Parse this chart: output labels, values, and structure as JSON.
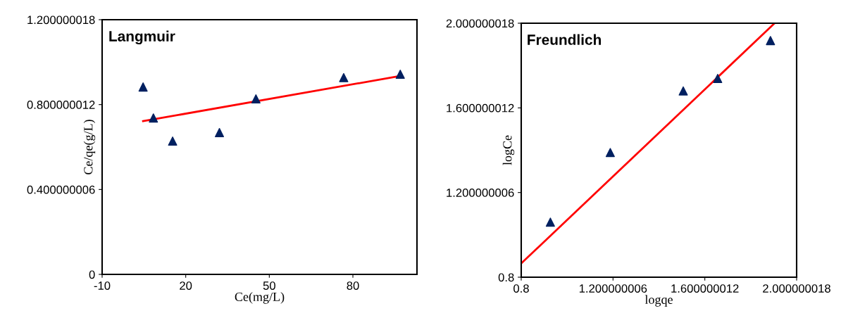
{
  "chart_data": [
    {
      "type": "scatter",
      "title": "Langmuir",
      "xlabel": "Ce(mg/L)",
      "ylabel": "Ce/qe(g/L)",
      "grid": false,
      "xlim": [
        -10,
        103
      ],
      "xticks": [
        -10,
        20,
        50,
        80
      ],
      "ylim": [
        0,
        1.200000018
      ],
      "yticks": [
        0,
        0.400000006,
        0.800000012,
        1.200000018
      ],
      "series": [
        {
          "color": "#002060",
          "marker": "triangle",
          "x": [
            4.7,
            8.4,
            15.3,
            32.1,
            45.2,
            76.7,
            97.0
          ],
          "values": [
            0.883,
            0.737,
            0.628,
            0.668,
            0.827,
            0.927,
            0.943
          ]
        },
        {
          "type": "line",
          "marker": "none",
          "color": "#ff0000",
          "x": [
            4.7,
            95.7
          ],
          "values": [
            0.722,
            0.932
          ]
        }
      ]
    },
    {
      "type": "scatter",
      "title": "Freundlich",
      "xlabel": "logqe",
      "ylabel": "logCe",
      "grid": false,
      "xlim": [
        0.8,
        2.000000018
      ],
      "xticks": [
        0.8,
        1.200000006,
        1.600000012,
        2.000000018
      ],
      "ylim": [
        0.8,
        2.000000018
      ],
      "yticks": [
        0.8,
        1.200000006,
        1.600000012,
        2.000000018
      ],
      "series": [
        {
          "color": "#002060",
          "marker": "triangle",
          "x": [
            0.927,
            1.188,
            1.506,
            1.656,
            1.886
          ],
          "values": [
            1.06,
            1.389,
            1.68,
            1.739,
            1.918
          ]
        },
        {
          "type": "line",
          "marker": "none",
          "color": "#ff0000",
          "x": [
            0.8,
            1.904
          ],
          "values": [
            0.865,
            2.0
          ]
        }
      ]
    }
  ]
}
